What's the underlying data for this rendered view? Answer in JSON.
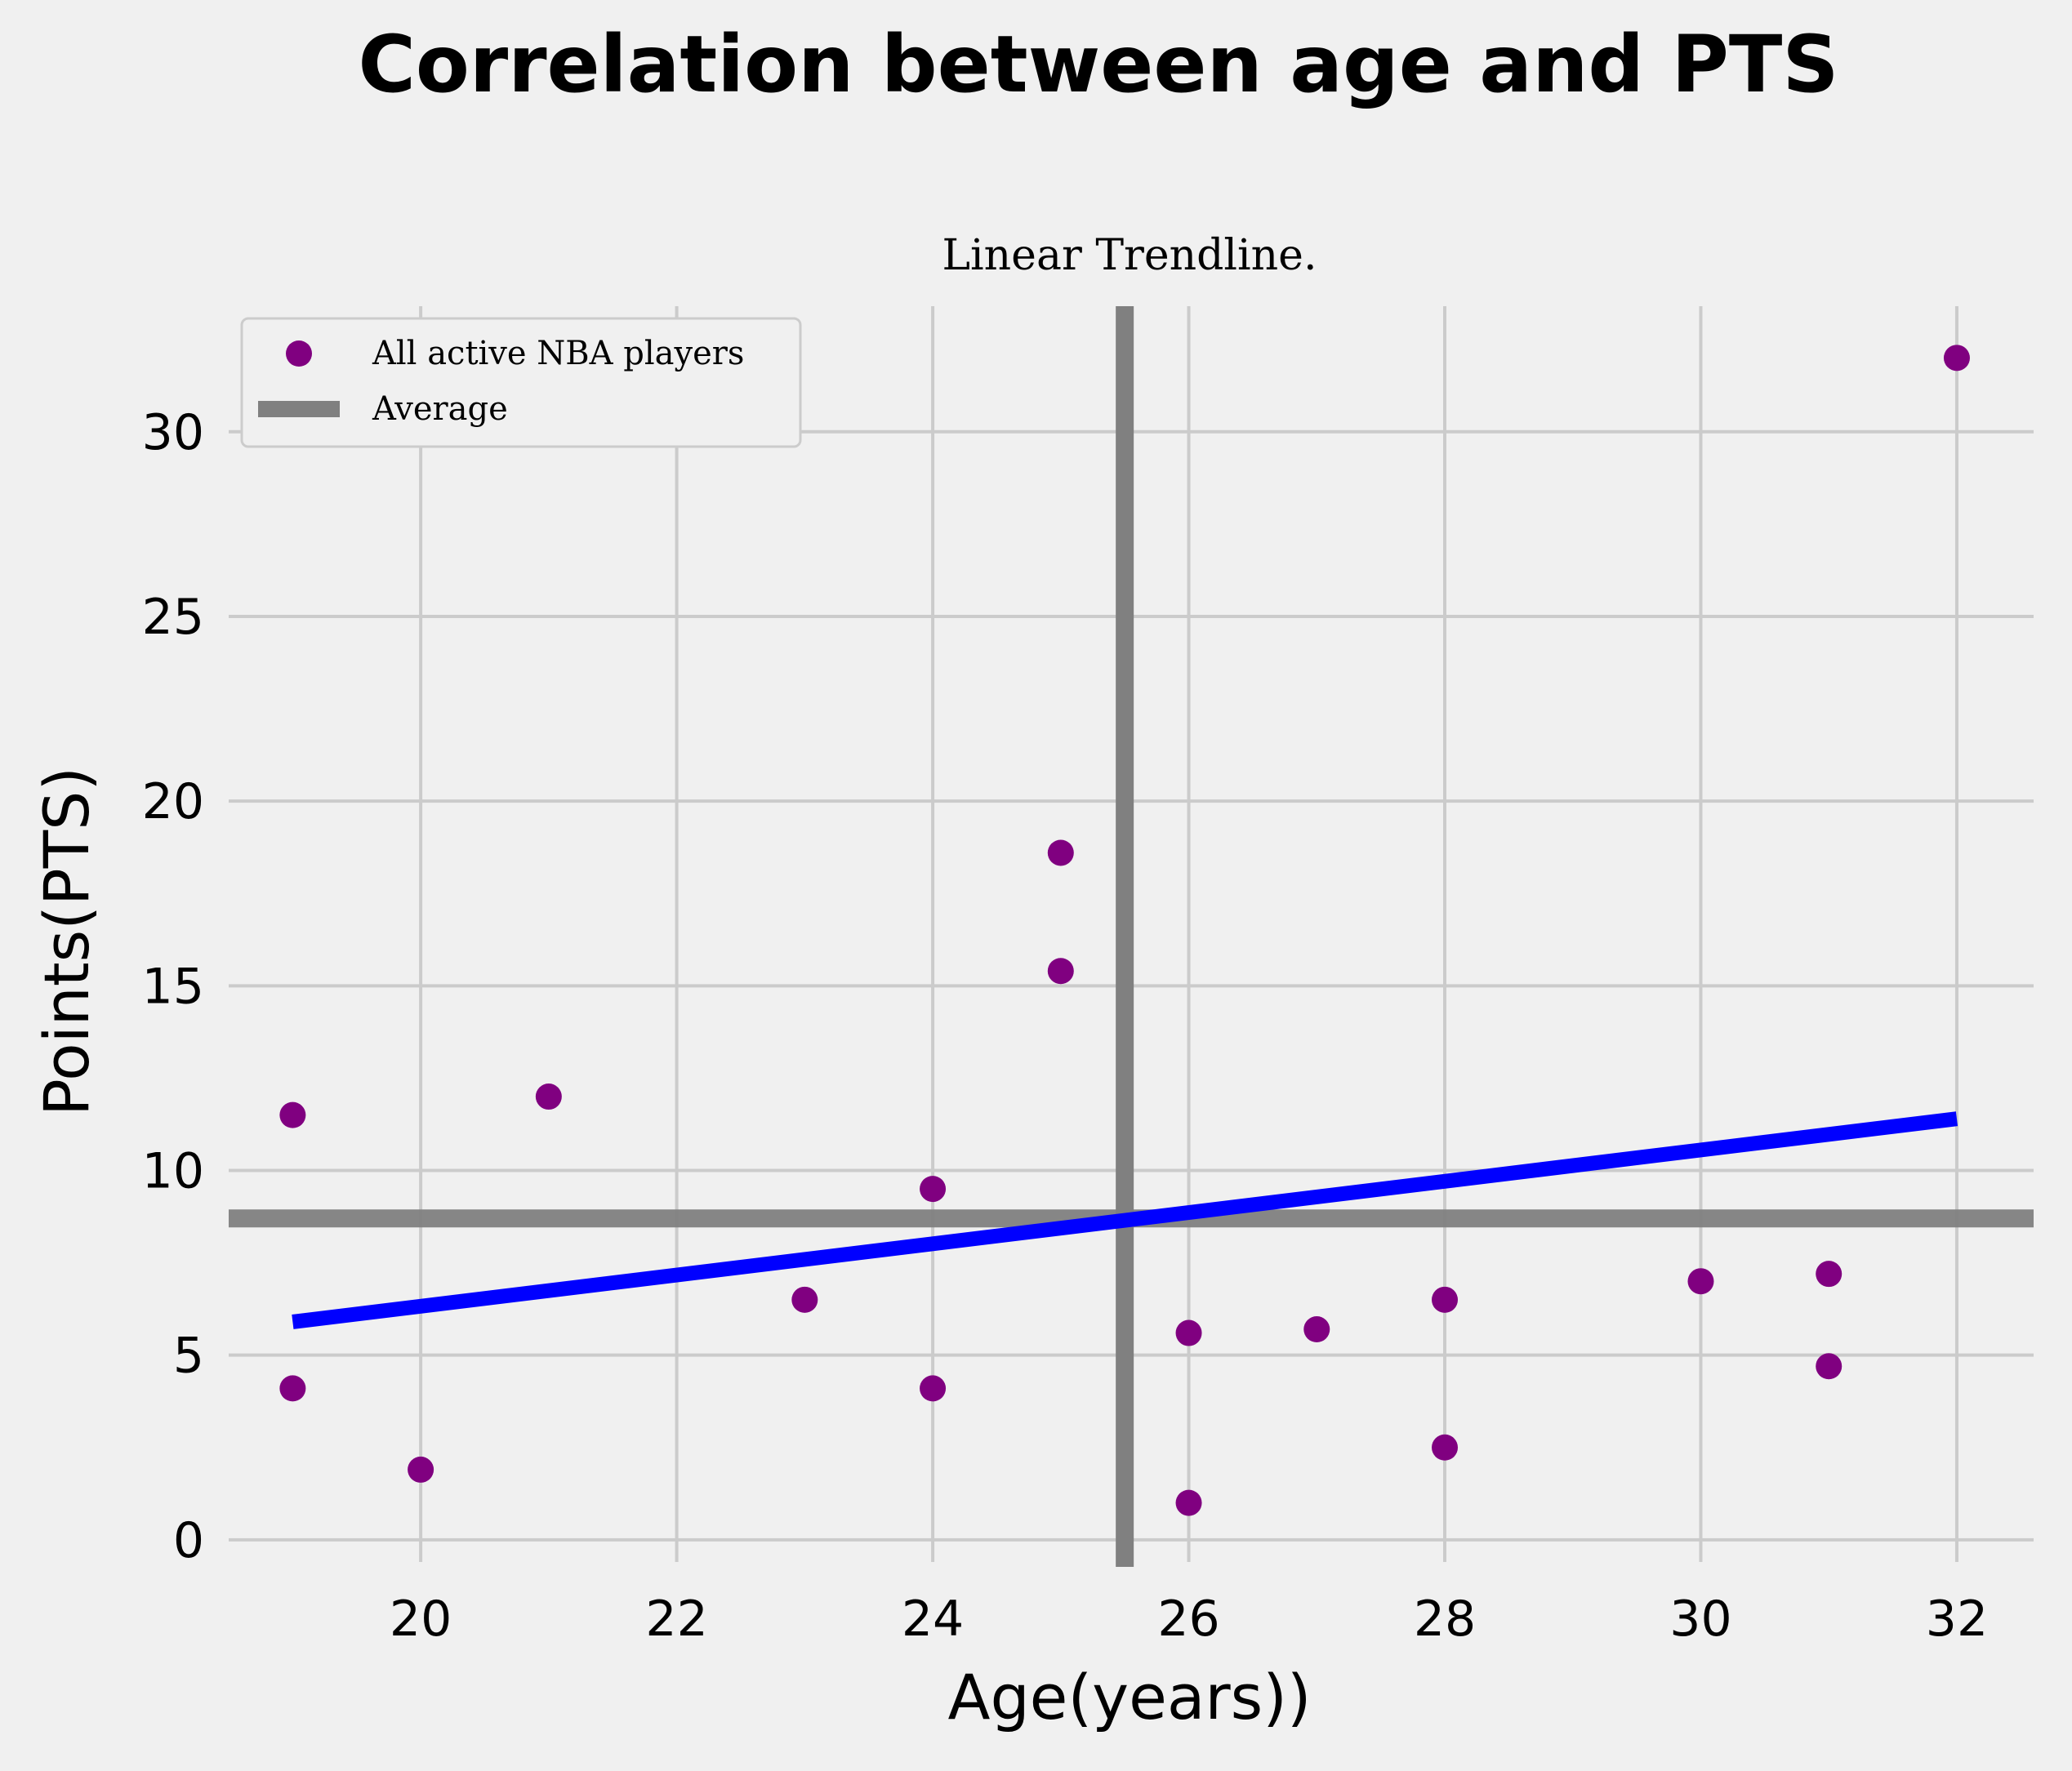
{
  "chart_data": {
    "type": "scatter",
    "title": "Correlation between age and PTS",
    "subtitle": "Linear Trendline.",
    "xlabel": "Age(years))",
    "ylabel": "Points(PTS)",
    "xlim": [
      18.5,
      32.6
    ],
    "ylim": [
      -0.6,
      33.4
    ],
    "xticks": [
      20,
      22,
      24,
      26,
      28,
      30,
      32
    ],
    "yticks": [
      0,
      5,
      10,
      15,
      20,
      25,
      30
    ],
    "grid": true,
    "legend_position": "top-left",
    "series": [
      {
        "name": "All active NBA players",
        "kind": "scatter",
        "color": "#800080",
        "points": [
          {
            "x": 19,
            "y": 11.5
          },
          {
            "x": 19,
            "y": 4.1
          },
          {
            "x": 20,
            "y": 1.9
          },
          {
            "x": 21,
            "y": 12.0
          },
          {
            "x": 23,
            "y": 6.5
          },
          {
            "x": 24,
            "y": 9.5
          },
          {
            "x": 24,
            "y": 4.1
          },
          {
            "x": 25,
            "y": 18.6
          },
          {
            "x": 25,
            "y": 15.4
          },
          {
            "x": 26,
            "y": 5.6
          },
          {
            "x": 26,
            "y": 1.0
          },
          {
            "x": 27,
            "y": 5.7
          },
          {
            "x": 28,
            "y": 6.5
          },
          {
            "x": 28,
            "y": 2.5
          },
          {
            "x": 30,
            "y": 7.0
          },
          {
            "x": 31,
            "y": 7.2
          },
          {
            "x": 31,
            "y": 4.7
          },
          {
            "x": 32,
            "y": 32.0
          }
        ]
      },
      {
        "name": "Average",
        "kind": "reference-lines",
        "color": "#808080",
        "x_mean": 25.5,
        "y_mean": 8.7
      }
    ],
    "trendline": {
      "color": "#0000ff",
      "x": [
        19,
        32
      ],
      "y": [
        5.9,
        11.4
      ]
    }
  }
}
